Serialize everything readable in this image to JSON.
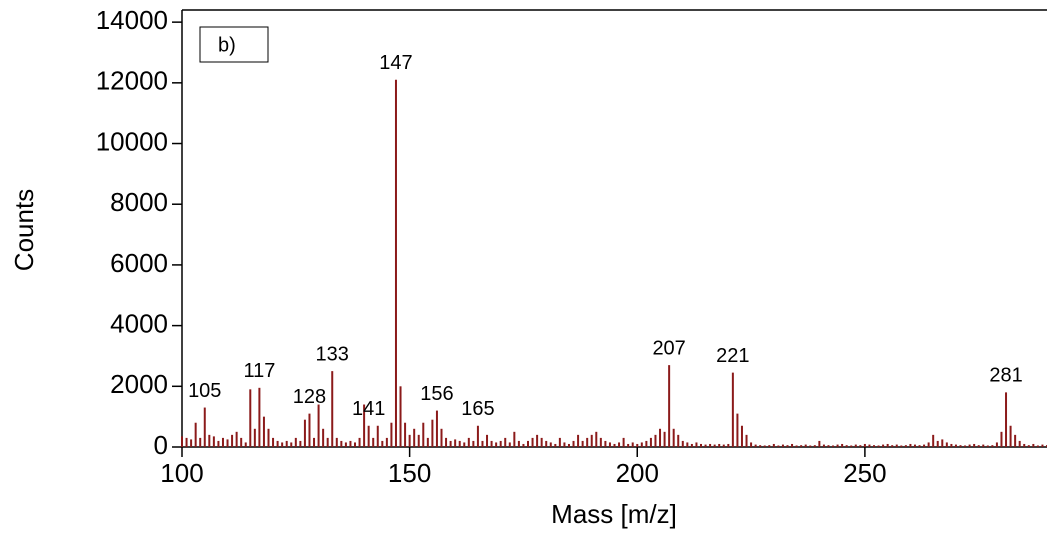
{
  "chart_data": {
    "type": "stem",
    "panel_label": "b)",
    "x_label": "Mass [m/z]",
    "y_label": "Counts",
    "color": "#8b1a1a",
    "xlim": [
      100,
      290
    ],
    "ylim": [
      0,
      14400
    ],
    "xticks": [
      100,
      150,
      200,
      250
    ],
    "yticks": [
      0,
      2000,
      4000,
      6000,
      8000,
      10000,
      12000,
      14000
    ],
    "annotations": [
      105,
      117,
      128,
      133,
      141,
      147,
      156,
      165,
      207,
      221,
      281
    ],
    "series": [
      {
        "name": "Counts",
        "x": [
          100,
          101,
          102,
          103,
          104,
          105,
          106,
          107,
          108,
          109,
          110,
          111,
          112,
          113,
          114,
          115,
          116,
          117,
          118,
          119,
          120,
          121,
          122,
          123,
          124,
          125,
          126,
          127,
          128,
          129,
          130,
          131,
          132,
          133,
          134,
          135,
          136,
          137,
          138,
          139,
          140,
          141,
          142,
          143,
          144,
          145,
          146,
          147,
          148,
          149,
          150,
          151,
          152,
          153,
          154,
          155,
          156,
          157,
          158,
          159,
          160,
          161,
          162,
          163,
          164,
          165,
          166,
          167,
          168,
          169,
          170,
          171,
          172,
          173,
          174,
          175,
          176,
          177,
          178,
          179,
          180,
          181,
          182,
          183,
          184,
          185,
          186,
          187,
          188,
          189,
          190,
          191,
          192,
          193,
          194,
          195,
          196,
          197,
          198,
          199,
          200,
          201,
          202,
          203,
          204,
          205,
          206,
          207,
          208,
          209,
          210,
          211,
          212,
          213,
          214,
          215,
          216,
          217,
          218,
          219,
          220,
          221,
          222,
          223,
          224,
          225,
          226,
          227,
          228,
          229,
          230,
          231,
          232,
          233,
          234,
          235,
          236,
          237,
          238,
          239,
          240,
          241,
          242,
          243,
          244,
          245,
          246,
          247,
          248,
          249,
          250,
          251,
          252,
          253,
          254,
          255,
          256,
          257,
          258,
          259,
          260,
          261,
          262,
          263,
          264,
          265,
          266,
          267,
          268,
          269,
          270,
          271,
          272,
          273,
          274,
          275,
          276,
          277,
          278,
          279,
          280,
          281,
          282,
          283,
          284,
          285,
          286,
          287,
          288,
          289,
          290
        ],
        "values": [
          350,
          300,
          250,
          800,
          300,
          1300,
          400,
          350,
          200,
          300,
          250,
          400,
          500,
          300,
          150,
          1900,
          600,
          1950,
          1000,
          600,
          300,
          200,
          150,
          200,
          150,
          300,
          200,
          900,
          1100,
          300,
          1400,
          600,
          300,
          2500,
          300,
          200,
          150,
          200,
          150,
          300,
          1400,
          700,
          300,
          700,
          200,
          300,
          800,
          12100,
          2000,
          800,
          400,
          600,
          400,
          800,
          300,
          900,
          1200,
          600,
          300,
          200,
          250,
          200,
          150,
          300,
          200,
          700,
          200,
          400,
          200,
          150,
          200,
          300,
          150,
          500,
          200,
          100,
          200,
          300,
          400,
          300,
          200,
          150,
          100,
          300,
          150,
          100,
          200,
          400,
          200,
          300,
          400,
          500,
          300,
          200,
          150,
          100,
          150,
          300,
          100,
          150,
          100,
          150,
          200,
          300,
          400,
          600,
          500,
          2700,
          600,
          400,
          200,
          150,
          100,
          150,
          100,
          80,
          100,
          80,
          100,
          80,
          100,
          2450,
          1100,
          700,
          400,
          150,
          80,
          60,
          50,
          60,
          100,
          50,
          80,
          60,
          100,
          50,
          60,
          80,
          50,
          60,
          200,
          80,
          60,
          50,
          80,
          100,
          60,
          50,
          80,
          60,
          100,
          80,
          60,
          50,
          80,
          100,
          60,
          80,
          50,
          60,
          100,
          80,
          60,
          80,
          150,
          400,
          200,
          250,
          150,
          100,
          80,
          60,
          50,
          80,
          100,
          60,
          80,
          50,
          60,
          150,
          500,
          1800,
          700,
          400,
          200,
          100,
          60,
          100,
          50,
          80,
          60
        ]
      }
    ]
  }
}
